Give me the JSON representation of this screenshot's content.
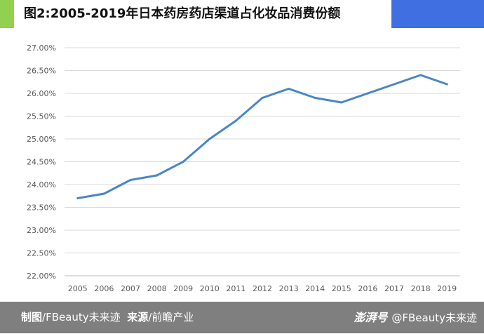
{
  "header": {
    "title": "图2:2005-2019年日本药房药店渠道占化妆品消费份额",
    "accent_left_color": "#92d050",
    "accent_right_color": "#3f6fe0"
  },
  "footer": {
    "made_by_label": "制图",
    "made_by_value": "/FBeauty未来迹",
    "source_label": "来源",
    "source_value": "/前瞻产业",
    "brand_mark": "澎湃号",
    "account": "@FBeauty未来迹"
  },
  "chart_data": {
    "type": "line",
    "title": "",
    "xlabel": "",
    "ylabel": "",
    "categories": [
      "2005",
      "2006",
      "2007",
      "2008",
      "2009",
      "2010",
      "2011",
      "2012",
      "2013",
      "2014",
      "2015",
      "2016",
      "2017",
      "2018",
      "2019"
    ],
    "series": [
      {
        "values": [
          23.7,
          23.8,
          24.1,
          24.2,
          24.5,
          25.0,
          25.4,
          25.9,
          26.1,
          25.9,
          25.8,
          26.0,
          26.2,
          26.4,
          26.2
        ]
      }
    ],
    "ylim": [
      22.0,
      27.0
    ],
    "yticks": [
      "22.00%",
      "22.50%",
      "23.00%",
      "23.50%",
      "24.00%",
      "24.50%",
      "25.00%",
      "25.50%",
      "26.00%",
      "26.50%",
      "27.00%"
    ],
    "grid": true,
    "line_color": "#4a86c5"
  }
}
